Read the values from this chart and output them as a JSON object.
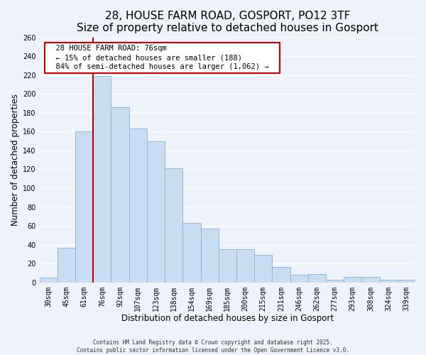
{
  "title": "28, HOUSE FARM ROAD, GOSPORT, PO12 3TF",
  "subtitle": "Size of property relative to detached houses in Gosport",
  "xlabel": "Distribution of detached houses by size in Gosport",
  "ylabel": "Number of detached properties",
  "categories": [
    "30sqm",
    "45sqm",
    "61sqm",
    "76sqm",
    "92sqm",
    "107sqm",
    "123sqm",
    "138sqm",
    "154sqm",
    "169sqm",
    "185sqm",
    "200sqm",
    "215sqm",
    "231sqm",
    "246sqm",
    "262sqm",
    "277sqm",
    "293sqm",
    "308sqm",
    "324sqm",
    "339sqm"
  ],
  "values": [
    5,
    37,
    160,
    219,
    186,
    163,
    150,
    121,
    63,
    57,
    35,
    35,
    29,
    16,
    8,
    9,
    3,
    6,
    6,
    3,
    3
  ],
  "bar_color": "#c9ddf2",
  "bar_edge_color": "#90b8d8",
  "ylim": [
    0,
    260
  ],
  "yticks": [
    0,
    20,
    40,
    60,
    80,
    100,
    120,
    140,
    160,
    180,
    200,
    220,
    240,
    260
  ],
  "vline_x_index": 3,
  "vline_color": "#cc0000",
  "annotation_title": "28 HOUSE FARM ROAD: 76sqm",
  "annotation_line1": "← 15% of detached houses are smaller (188)",
  "annotation_line2": "84% of semi-detached houses are larger (1,062) →",
  "annotation_box_color": "#ffffff",
  "annotation_box_edge": "#cc0000",
  "footer1": "Contains HM Land Registry data © Crown copyright and database right 2025.",
  "footer2": "Contains public sector information licensed under the Open Government Licence v3.0.",
  "background_color": "#eef2fa",
  "grid_color": "#ffffff",
  "title_fontsize": 11,
  "subtitle_fontsize": 9,
  "axis_label_fontsize": 8.5,
  "tick_fontsize": 7,
  "annotation_fontsize": 7.5,
  "footer_fontsize": 5.5
}
